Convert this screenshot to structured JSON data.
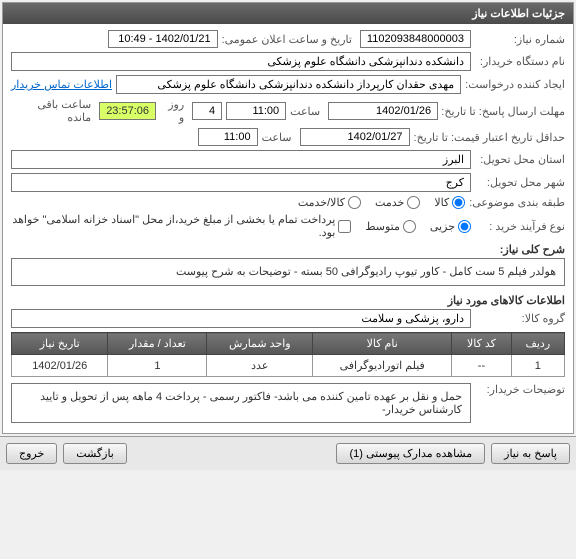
{
  "panel_title": "جزئیات اطلاعات نیاز",
  "fields": {
    "need_no_label": "شماره نیاز:",
    "need_no": "1102093848000003",
    "announce_label": "تاریخ و ساعت اعلان عمومی:",
    "announce_value": "1402/01/21 - 10:49",
    "buyer_org_label": "نام دستگاه خریدار:",
    "buyer_org": "دانشکده دندانپزشکی دانشگاه علوم پزشکی",
    "requester_label": "ایجاد کننده درخواست:",
    "requester": "مهدی حقدان کارپرداز دانشکده دندانپزشکی دانشگاه علوم پزشکی",
    "contact_link": "اطلاعات تماس خریدار",
    "deadline_label": "مهلت ارسال پاسخ: تا تاریخ:",
    "deadline_date": "1402/01/26",
    "time_label": "ساعت",
    "deadline_time": "11:00",
    "days_remain": "4",
    "days_remain_suffix": "روز و",
    "time_remain": "23:57:06",
    "time_remain_suffix": "ساعت باقی مانده",
    "price_validity_label": "حداقل تاریخ اعتبار قیمت: تا تاریخ:",
    "price_validity_date": "1402/01/27",
    "price_validity_time": "11:00",
    "province_label": "استان محل تحویل:",
    "province": "البرز",
    "city_label": "شهر محل تحویل:",
    "city": "کرج",
    "category_label": "طبقه بندی موضوعی:",
    "cat_kala": "کالا",
    "cat_khadamat": "خدمت",
    "cat_both": "کالا/خدمت",
    "purchase_type_label": "نوع فرآیند خرید :",
    "pt_jozi": "جزیی",
    "pt_motavaset": "متوسط",
    "payment_note": "پرداخت تمام یا بخشی از مبلغ خرید،از محل \"اسناد خزانه اسلامی\" خواهد بود.",
    "general_desc_label": "شرح کلی نیاز:",
    "general_desc": "هولدر فیلم 5 ست کامل - کاور تیوپ رادیوگرافی 50 بسته - توضیحات به شرح پیوست",
    "items_header": "اطلاعات کالاهای مورد نیاز",
    "group_label": "گروه کالا:",
    "group_value": "دارو، پزشکی و سلامت",
    "buyer_note_label": "توضیحات خریدار:",
    "buyer_note": "حمل و نقل بر عهده تامین کننده می باشد- فاکتور رسمی - پرداخت 4 ماهه پس از تحویل و تایید کارشناس خریدار-"
  },
  "table": {
    "cols": [
      "ردیف",
      "کد کالا",
      "نام کالا",
      "واحد شمارش",
      "تعداد / مقدار",
      "تاریخ نیاز"
    ],
    "rows": [
      [
        "1",
        "--",
        "فیلم اتورادیوگرافی",
        "عدد",
        "1",
        "1402/01/26"
      ]
    ]
  },
  "buttons": {
    "respond": "پاسخ به نیاز",
    "attachments": "مشاهده مدارک پیوستی (1)",
    "back": "بازگشت",
    "exit": "خروج"
  },
  "watermark": "setadiran.ir",
  "colors": {
    "header_bg": "#555555",
    "highlight_bg": "#d8ff66",
    "link": "#0066cc"
  }
}
